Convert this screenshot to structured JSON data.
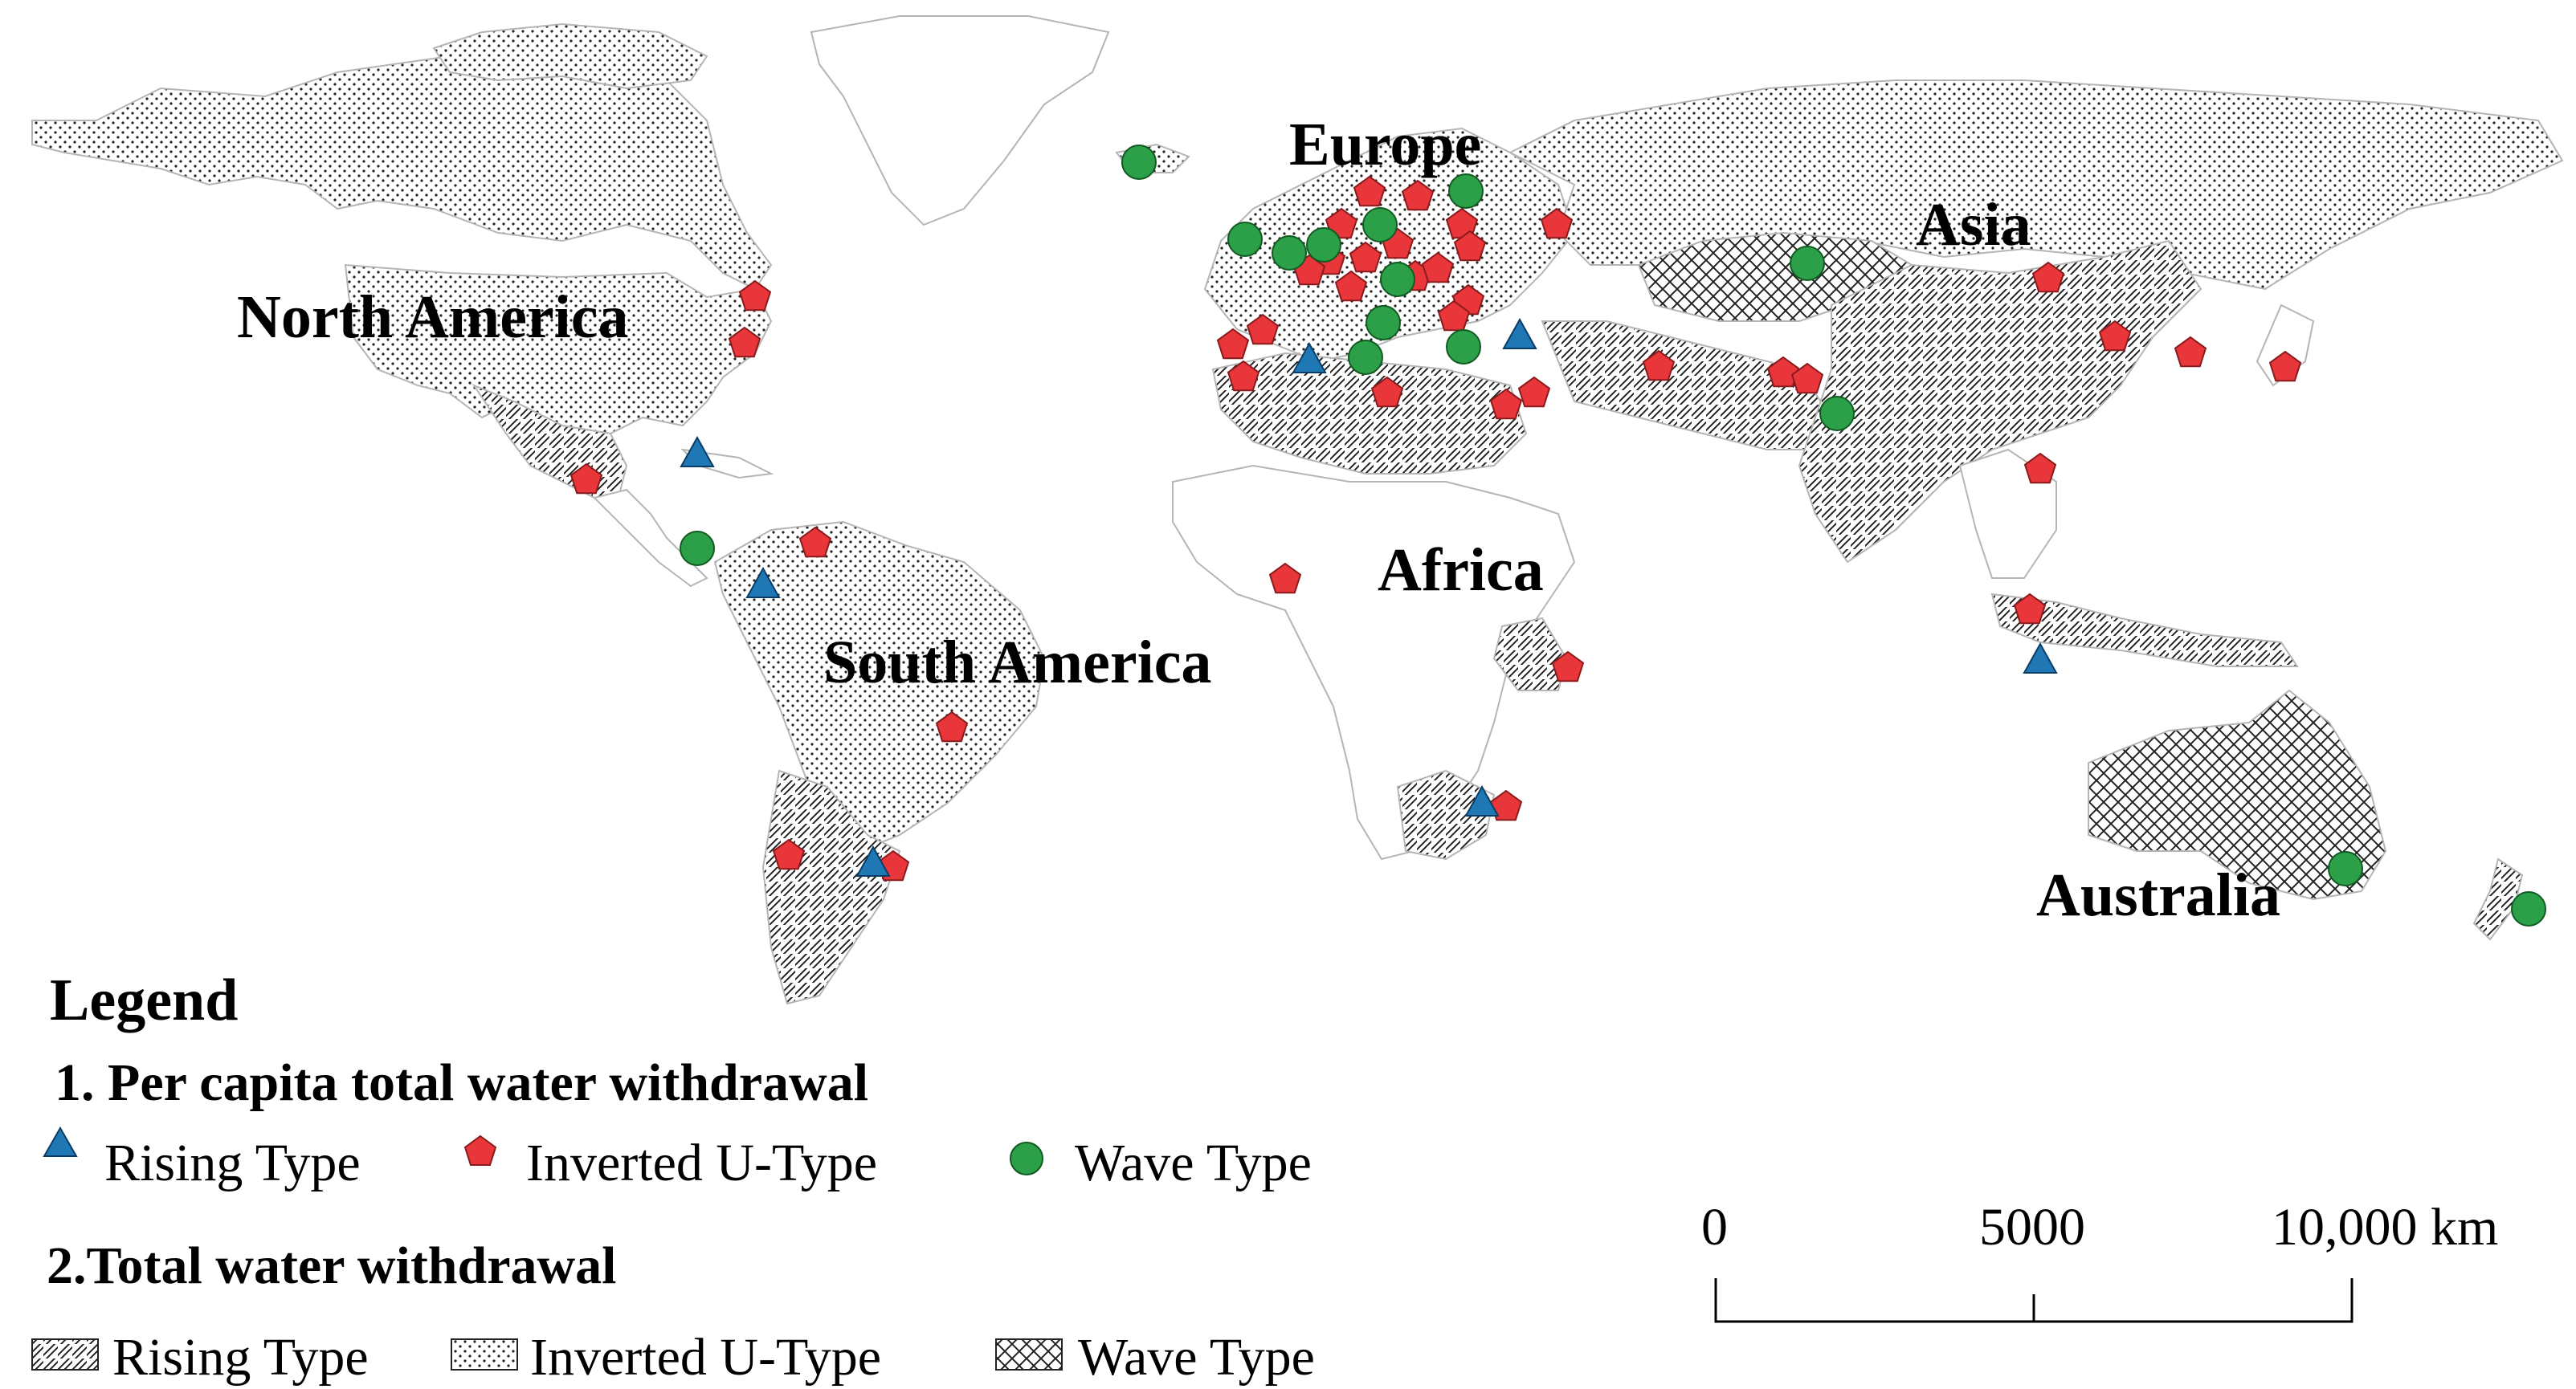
{
  "map": {
    "continents": [
      {
        "id": "north-america",
        "label": "North America"
      },
      {
        "id": "south-america",
        "label": "South America"
      },
      {
        "id": "europe",
        "label": "Europe"
      },
      {
        "id": "africa",
        "label": "Africa"
      },
      {
        "id": "asia",
        "label": "Asia"
      },
      {
        "id": "australia",
        "label": "Australia"
      }
    ],
    "colors": {
      "rising": "#1f77b4",
      "inverted_u": "#e8363a",
      "wave": "#2ca048",
      "land_stroke": "#b5b5b5"
    },
    "symbols": {
      "rising": "triangle",
      "inverted_u": "pentagon",
      "wave": "circle"
    },
    "fill_patterns": {
      "rising": "diagonal-hatch",
      "inverted_u": "dot-stipple",
      "wave": "cross-hatch"
    }
  },
  "legend": {
    "title": "Legend",
    "section1": {
      "heading": "1. Per capita total water withdrawal",
      "items": [
        {
          "label": "Rising Type",
          "symbol": "triangle"
        },
        {
          "label": "Inverted U-Type",
          "symbol": "pentagon"
        },
        {
          "label": "Wave Type",
          "symbol": "circle"
        }
      ]
    },
    "section2": {
      "heading": "2.Total water withdrawal",
      "items": [
        {
          "label": "Rising Type",
          "pattern": "diagonal-hatch"
        },
        {
          "label": "Inverted U-Type",
          "pattern": "dot-stipple"
        },
        {
          "label": "Wave Type",
          "pattern": "cross-hatch"
        }
      ]
    }
  },
  "scale_bar": {
    "ticks": [
      "0",
      "5000",
      "10,000 km"
    ]
  }
}
